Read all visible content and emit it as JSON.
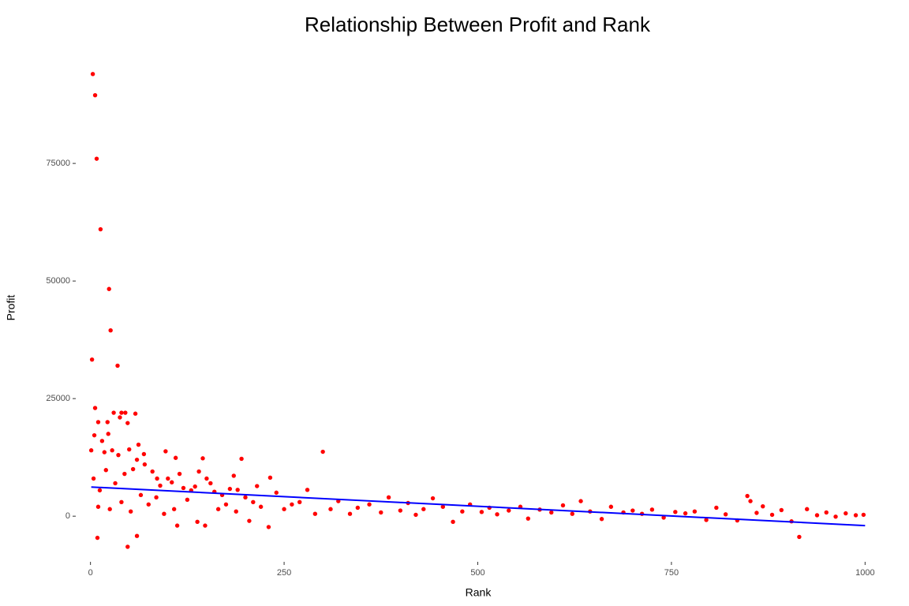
{
  "chart_data": {
    "type": "scatter",
    "title": "Relationship Between Profit and Rank",
    "x_label": "Rank",
    "y_label": "Profit",
    "xlim": [
      -19,
      1019
    ],
    "ylim": [
      -9700,
      98000
    ],
    "xticks": [
      0,
      250,
      500,
      750,
      1000
    ],
    "yticks": [
      0,
      25000,
      50000,
      75000
    ],
    "grid": false,
    "x": [
      3,
      6,
      8,
      13,
      24,
      26,
      2,
      35,
      6,
      30,
      40,
      45,
      58,
      38,
      10,
      22,
      48,
      5,
      15,
      23,
      62,
      1,
      18,
      28,
      36,
      69,
      97,
      300,
      110,
      145,
      195,
      60,
      4,
      12,
      20,
      32,
      44,
      50,
      55,
      70,
      80,
      86,
      90,
      100,
      105,
      115,
      120,
      130,
      135,
      140,
      150,
      155,
      160,
      170,
      180,
      185,
      190,
      200,
      210,
      215,
      232,
      240,
      280,
      9,
      48,
      60,
      10,
      25,
      40,
      52,
      65,
      75,
      85,
      95,
      108,
      112,
      125,
      138,
      148,
      165,
      175,
      188,
      205,
      220,
      230,
      250,
      260,
      270,
      290,
      310,
      320,
      335,
      345,
      360,
      375,
      385,
      400,
      410,
      420,
      430,
      442,
      455,
      468,
      480,
      490,
      505,
      515,
      525,
      540,
      555,
      565,
      580,
      595,
      610,
      622,
      633,
      645,
      660,
      672,
      688,
      700,
      712,
      725,
      740,
      755,
      768,
      780,
      795,
      808,
      820,
      835,
      848,
      852,
      860,
      868,
      880,
      892,
      905,
      915,
      925,
      938,
      950,
      962,
      975,
      988,
      998
    ],
    "values": [
      94000,
      89500,
      76000,
      61000,
      48300,
      39500,
      33300,
      32000,
      23000,
      22000,
      22000,
      22000,
      21800,
      21000,
      20000,
      20000,
      19800,
      17200,
      16000,
      17500,
      15200,
      14000,
      13600,
      14000,
      13000,
      13200,
      13800,
      13700,
      12400,
      12300,
      12200,
      12000,
      8000,
      5500,
      9800,
      7000,
      9000,
      14200,
      10000,
      11000,
      9500,
      8000,
      6500,
      8000,
      7200,
      9000,
      6000,
      5500,
      6300,
      9500,
      8000,
      7000,
      5200,
      4500,
      5800,
      8600,
      5600,
      4000,
      3000,
      6400,
      8200,
      5000,
      5600,
      -4600,
      -6500,
      -4200,
      2000,
      1500,
      3000,
      1000,
      4500,
      2500,
      4000,
      500,
      1500,
      -2000,
      3500,
      -1200,
      -2000,
      1500,
      2500,
      1000,
      -1000,
      2000,
      -2300,
      1500,
      2500,
      3000,
      500,
      1500,
      3200,
      500,
      1800,
      2500,
      800,
      4000,
      1200,
      2800,
      300,
      1500,
      3800,
      2000,
      -1200,
      1000,
      2500,
      900,
      1800,
      400,
      1200,
      2000,
      -500,
      1400,
      800,
      2300,
      500,
      3200,
      1000,
      -600,
      2000,
      800,
      1200,
      500,
      1400,
      -300,
      900,
      600,
      1000,
      -800,
      1800,
      400,
      -900,
      4300,
      3200,
      700,
      2100,
      300,
      1300,
      -1100,
      -4400,
      1500,
      200,
      800,
      -100,
      600,
      200,
      300
    ],
    "color": "#ff0000",
    "trend": {
      "x": [
        1,
        1000
      ],
      "values": [
        6200,
        -2000
      ],
      "color": "#0000ff"
    }
  }
}
